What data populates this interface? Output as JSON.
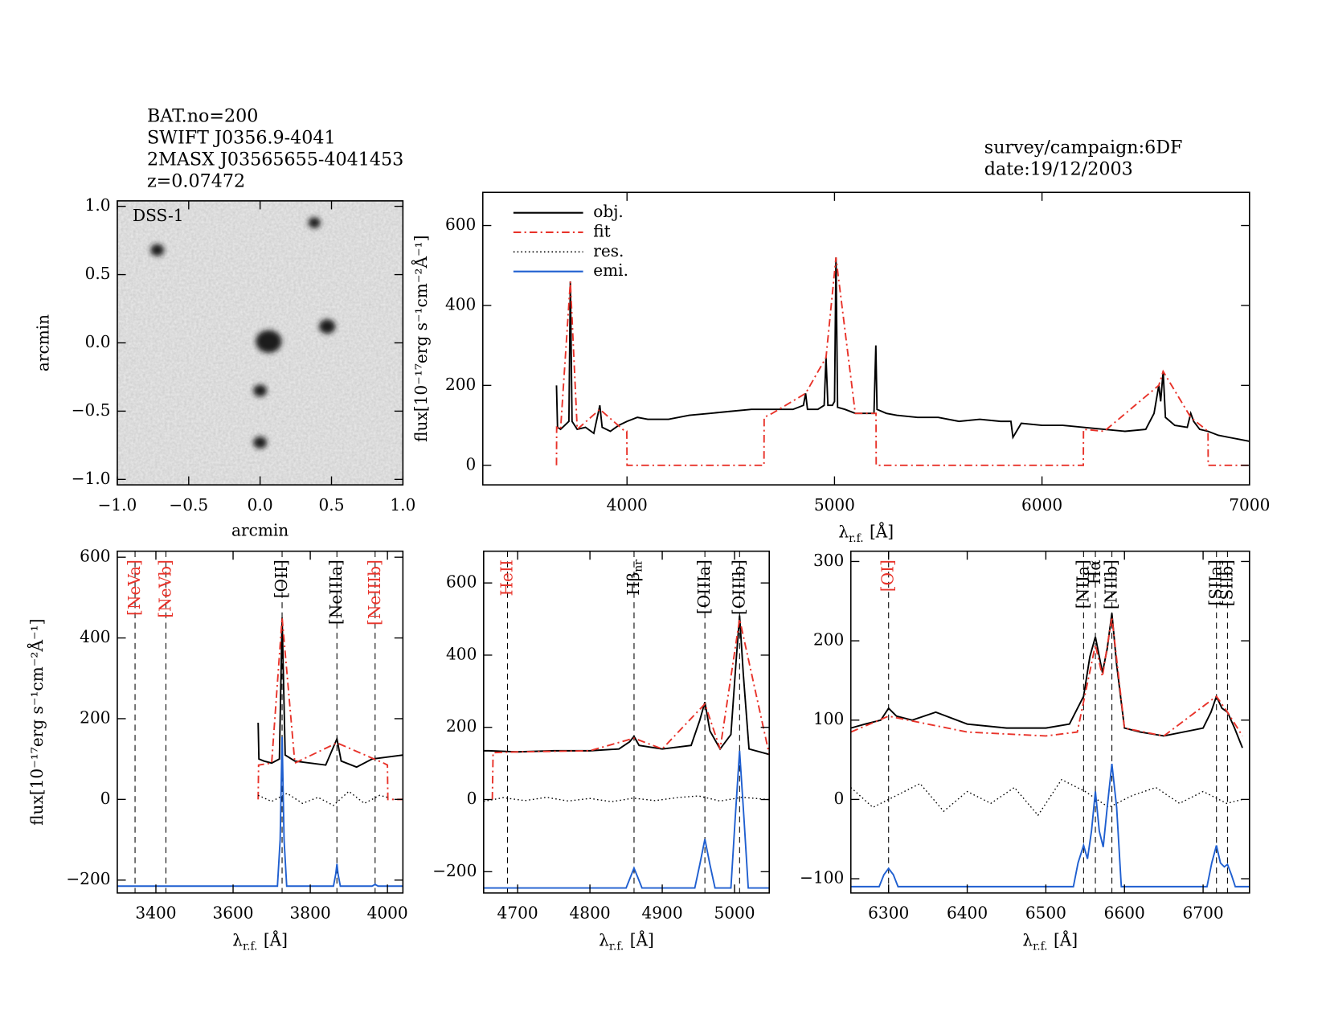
{
  "header": {
    "left": [
      "BAT.no=200",
      "SWIFT J0356.9-4041",
      "2MASX J03565655-4041453",
      "z=0.07472"
    ],
    "right": [
      "survey/campaign:6DF",
      "date:19/12/2003"
    ]
  },
  "chart_data": [
    {
      "type": "image",
      "inset_label": "DSS-1",
      "xlabel": "arcmin",
      "ylabel": "arcmin",
      "xlim": [
        -1,
        1
      ],
      "ylim": [
        -1.04,
        1.04
      ],
      "xticks": [
        {
          "value": -1,
          "label": "−1.0"
        },
        {
          "value": -0.5,
          "label": "−0.5"
        },
        {
          "value": 0,
          "label": "0.0"
        },
        0.5,
        {
          "value": 1,
          "label": "1.0"
        }
      ],
      "yticks": [
        {
          "value": -1,
          "label": "−1.0"
        },
        {
          "value": -0.5,
          "label": "−0.5"
        },
        {
          "value": 0,
          "label": "0.0"
        },
        0.5,
        {
          "value": 1,
          "label": "1.0"
        }
      ],
      "sources": {
        "x": [
          -0.72,
          0.38,
          0.06,
          0.47,
          0.0,
          0.0
        ],
        "y": [
          0.68,
          0.88,
          0.01,
          0.12,
          -0.35,
          -0.73
        ],
        "size": [
          1,
          0.9,
          1.9,
          1.2,
          1,
          1
        ]
      }
    },
    {
      "type": "line",
      "xlabel": {
        "symbol": "λ",
        "sub": "r.f.",
        "unit": "[Å]"
      },
      "ylabel": "flux[10⁻¹⁷erg s⁻¹cm⁻²Å⁻¹]",
      "xlim": [
        3305,
        7000
      ],
      "ylim": [
        -49,
        683
      ],
      "xticks": [
        4000,
        5000,
        6000,
        7000
      ],
      "yticks": [
        0,
        200,
        400,
        600
      ],
      "legend": "upper left",
      "series": [
        {
          "name": "obj.",
          "color": "#000000",
          "style": "solid",
          "x": [
            3660,
            3665,
            3680,
            3700,
            3720,
            3727,
            3735,
            3760,
            3800,
            3840,
            3869,
            3880,
            3920,
            3960,
            4000,
            4050,
            4100,
            4200,
            4300,
            4400,
            4500,
            4600,
            4700,
            4800,
            4850,
            4861,
            4870,
            4920,
            4950,
            4959,
            4968,
            4990,
            5000,
            5007,
            5015,
            5050,
            5100,
            5190,
            5199,
            5205,
            5250,
            5300,
            5400,
            5500,
            5600,
            5700,
            5800,
            5850,
            5860,
            5900,
            6000,
            6100,
            6200,
            6300,
            6400,
            6500,
            6540,
            6563,
            6572,
            6584,
            6595,
            6640,
            6700,
            6717,
            6731,
            6760,
            6800,
            6850,
            6900,
            6950,
            7000
          ],
          "values": [
            200,
            95,
            90,
            100,
            110,
            460,
            110,
            90,
            95,
            80,
            150,
            95,
            85,
            100,
            110,
            120,
            115,
            115,
            125,
            130,
            135,
            140,
            140,
            140,
            150,
            180,
            140,
            140,
            150,
            270,
            150,
            150,
            160,
            520,
            145,
            140,
            130,
            130,
            300,
            140,
            130,
            125,
            120,
            120,
            110,
            115,
            110,
            110,
            70,
            105,
            100,
            100,
            95,
            90,
            85,
            90,
            130,
            200,
            160,
            235,
            120,
            100,
            95,
            130,
            110,
            90,
            85,
            75,
            70,
            65,
            60
          ]
        },
        {
          "name": "fit",
          "color": "#e8332a",
          "style": "dashdot",
          "x": [
            3660,
            3661,
            3680,
            3727,
            3760,
            3869,
            3990,
            3999,
            4000,
            4660,
            4661,
            4700,
            4861,
            4959,
            5007,
            5100,
            5200,
            5201,
            6199,
            6200,
            6300,
            6563,
            6584,
            6717,
            6800,
            6801,
            7000
          ],
          "values": [
            0,
            95,
            90,
            460,
            90,
            140,
            85,
            85,
            0,
            0,
            120,
            130,
            180,
            270,
            520,
            130,
            130,
            0,
            0,
            90,
            85,
            200,
            235,
            120,
            85,
            0,
            0
          ]
        },
        {
          "name": "res.",
          "color": "#000000",
          "style": "dotted"
        },
        {
          "name": "emi.",
          "color": "#1f5fd0",
          "style": "solid"
        }
      ]
    },
    {
      "type": "line",
      "xlabel": {
        "symbol": "λ",
        "sub": "r.f.",
        "unit": "[Å]"
      },
      "ylabel": "flux[10⁻¹⁷erg s⁻¹cm⁻²Å⁻¹]",
      "xlim": [
        3300,
        4040
      ],
      "ylim": [
        -232,
        615
      ],
      "xticks": [
        3400,
        3600,
        3800,
        4000
      ],
      "yticks": [
        {
          "value": -200,
          "label": "−200"
        },
        0,
        200,
        400,
        600
      ],
      "lines": [
        {
          "label": "[NeVa]",
          "wave": 3346,
          "color": "#e8332a"
        },
        {
          "label": "[NeVb]",
          "wave": 3426,
          "color": "#e8332a"
        },
        {
          "label": "[OII]",
          "wave": 3727,
          "color": "#000000"
        },
        {
          "label": "[NeIIIa]",
          "wave": 3869,
          "color": "#000000"
        },
        {
          "label": "[NeIIIb]",
          "wave": 3968,
          "color": "#e8332a"
        }
      ],
      "series": [
        {
          "name": "obj.",
          "color": "#000000",
          "style": "solid",
          "x": [
            3665,
            3667,
            3680,
            3700,
            3720,
            3727,
            3735,
            3760,
            3800,
            3840,
            3869,
            3880,
            3920,
            3960,
            4000,
            4040
          ],
          "values": [
            190,
            100,
            95,
            90,
            100,
            450,
            110,
            95,
            90,
            85,
            150,
            95,
            80,
            100,
            105,
            110
          ]
        },
        {
          "name": "fit",
          "color": "#e8332a",
          "style": "dashdot",
          "x": [
            3665,
            3666,
            3700,
            3727,
            3760,
            3869,
            3990,
            4000,
            4001,
            4040
          ],
          "values": [
            0,
            85,
            90,
            450,
            90,
            140,
            90,
            85,
            0,
            0
          ]
        },
        {
          "name": "res.",
          "color": "#000000",
          "style": "dotted",
          "x": [
            3665,
            3700,
            3740,
            3780,
            3820,
            3860,
            3900,
            3940,
            3980,
            4000
          ],
          "values": [
            10,
            -5,
            15,
            -10,
            5,
            -15,
            20,
            -10,
            10,
            5
          ]
        },
        {
          "name": "emi.",
          "color": "#1f5fd0",
          "style": "solid",
          "x": [
            3300,
            3715,
            3722,
            3727,
            3732,
            3739,
            3860,
            3866,
            3869,
            3872,
            3878,
            3960,
            3966,
            3968,
            3970,
            3976,
            4040
          ],
          "values": [
            -215,
            -215,
            -100,
            155,
            -100,
            -215,
            -215,
            -185,
            -160,
            -185,
            -215,
            -215,
            -212,
            -210,
            -212,
            -215,
            -215
          ]
        }
      ]
    },
    {
      "type": "line",
      "xlabel": {
        "symbol": "λ",
        "sub": "r.f.",
        "unit": "[Å]"
      },
      "xlim": [
        4653,
        5048
      ],
      "ylim": [
        -259,
        688
      ],
      "xticks": [
        4700,
        4800,
        4900,
        5000
      ],
      "yticks": [
        {
          "value": -200,
          "label": "−200"
        },
        0,
        200,
        400,
        600
      ],
      "lines": [
        {
          "label": "HeII",
          "wave": 4686,
          "color": "#e8332a"
        },
        {
          "label": "Hβ",
          "sub": "nr",
          "wave": 4861,
          "color": "#000000"
        },
        {
          "label": "[OIIIa]",
          "wave": 4959,
          "color": "#000000"
        },
        {
          "label": "[OIIIb]",
          "wave": 5007,
          "color": "#000000"
        }
      ],
      "series": [
        {
          "name": "obj.",
          "color": "#000000",
          "style": "solid",
          "x": [
            4653,
            4660,
            4700,
            4750,
            4800,
            4840,
            4855,
            4861,
            4868,
            4900,
            4940,
            4952,
            4959,
            4966,
            4980,
            4995,
            5002,
            5007,
            5012,
            5020,
            5048
          ],
          "values": [
            135,
            135,
            132,
            135,
            135,
            140,
            160,
            175,
            150,
            140,
            150,
            220,
            270,
            190,
            140,
            180,
            380,
            510,
            350,
            140,
            125
          ]
        },
        {
          "name": "fit",
          "color": "#e8332a",
          "style": "dashdot",
          "x": [
            4665,
            4666,
            4700,
            4800,
            4861,
            4900,
            4959,
            4980,
            5007,
            5048
          ],
          "values": [
            0,
            130,
            132,
            135,
            170,
            140,
            265,
            140,
            500,
            125
          ]
        },
        {
          "name": "res.",
          "color": "#000000",
          "style": "dotted",
          "x": [
            4653,
            4680,
            4710,
            4740,
            4770,
            4800,
            4830,
            4860,
            4890,
            4920,
            4950,
            4980,
            5010,
            5048
          ],
          "values": [
            -5,
            5,
            -3,
            6,
            -4,
            3,
            -6,
            4,
            -3,
            5,
            10,
            -4,
            6,
            0
          ]
        },
        {
          "name": "emi.",
          "color": "#1f5fd0",
          "style": "solid",
          "x": [
            4653,
            4850,
            4856,
            4861,
            4866,
            4872,
            4945,
            4952,
            4959,
            4966,
            4973,
            4995,
            5001,
            5007,
            5013,
            5019,
            5048
          ],
          "values": [
            -245,
            -245,
            -215,
            -190,
            -215,
            -245,
            -245,
            -180,
            -110,
            -180,
            -245,
            -245,
            -50,
            135,
            -50,
            -245,
            -245
          ]
        }
      ]
    },
    {
      "type": "line",
      "xlabel": {
        "symbol": "λ",
        "sub": "r.f.",
        "unit": "[Å]"
      },
      "xlim": [
        6252,
        6759
      ],
      "ylim": [
        -118,
        313
      ],
      "xticks": [
        6300,
        6400,
        6500,
        6600,
        6700
      ],
      "yticks": [
        {
          "value": -100,
          "label": "−100"
        },
        0,
        100,
        200,
        300
      ],
      "lines": [
        {
          "label": "[OI]",
          "wave": 6300,
          "color": "#e8332a"
        },
        {
          "label": "[NIIa]",
          "wave": 6548,
          "color": "#000000"
        },
        {
          "label": "Hα",
          "wave": 6563,
          "color": "#000000"
        },
        {
          "label": "[NIIb]",
          "wave": 6584,
          "color": "#000000"
        },
        {
          "label": "[SIIa]",
          "wave": 6717,
          "color": "#000000"
        },
        {
          "label": "[SIIb]",
          "wave": 6731,
          "color": "#000000"
        }
      ],
      "series": [
        {
          "name": "obj.",
          "color": "#000000",
          "style": "solid",
          "x": [
            6252,
            6270,
            6290,
            6300,
            6310,
            6330,
            6360,
            6400,
            6450,
            6500,
            6530,
            6548,
            6556,
            6563,
            6572,
            6578,
            6584,
            6590,
            6600,
            6620,
            6650,
            6700,
            6710,
            6717,
            6724,
            6731,
            6740,
            6750
          ],
          "values": [
            90,
            95,
            100,
            115,
            105,
            100,
            110,
            95,
            90,
            90,
            95,
            130,
            180,
            205,
            160,
            190,
            235,
            170,
            90,
            85,
            80,
            90,
            110,
            130,
            115,
            110,
            90,
            65
          ]
        },
        {
          "name": "fit",
          "color": "#e8332a",
          "style": "dashdot",
          "x": [
            6252,
            6300,
            6400,
            6500,
            6540,
            6563,
            6572,
            6584,
            6600,
            6650,
            6717,
            6731,
            6750
          ],
          "values": [
            85,
            105,
            85,
            80,
            85,
            195,
            155,
            230,
            90,
            80,
            130,
            110,
            80
          ]
        },
        {
          "name": "res.",
          "color": "#000000",
          "style": "dotted",
          "x": [
            6252,
            6280,
            6310,
            6340,
            6370,
            6400,
            6430,
            6460,
            6490,
            6520,
            6550,
            6580,
            6610,
            6640,
            6670,
            6700,
            6730,
            6750
          ],
          "values": [
            15,
            -10,
            5,
            20,
            -15,
            10,
            -5,
            15,
            -20,
            25,
            10,
            -10,
            5,
            15,
            -5,
            10,
            -5,
            0
          ]
        },
        {
          "name": "emi.",
          "color": "#1f5fd0",
          "style": "solid",
          "x": [
            6252,
            6288,
            6294,
            6300,
            6306,
            6312,
            6535,
            6541,
            6548,
            6553,
            6558,
            6563,
            6568,
            6573,
            6578,
            6584,
            6590,
            6596,
            6705,
            6711,
            6717,
            6722,
            6727,
            6731,
            6736,
            6741,
            6759
          ],
          "values": [
            -110,
            -110,
            -95,
            -87,
            -95,
            -110,
            -110,
            -80,
            -58,
            -75,
            -40,
            10,
            -40,
            -60,
            -10,
            45,
            -10,
            -110,
            -110,
            -80,
            -58,
            -80,
            -85,
            -82,
            -95,
            -110,
            -110
          ]
        }
      ]
    }
  ]
}
